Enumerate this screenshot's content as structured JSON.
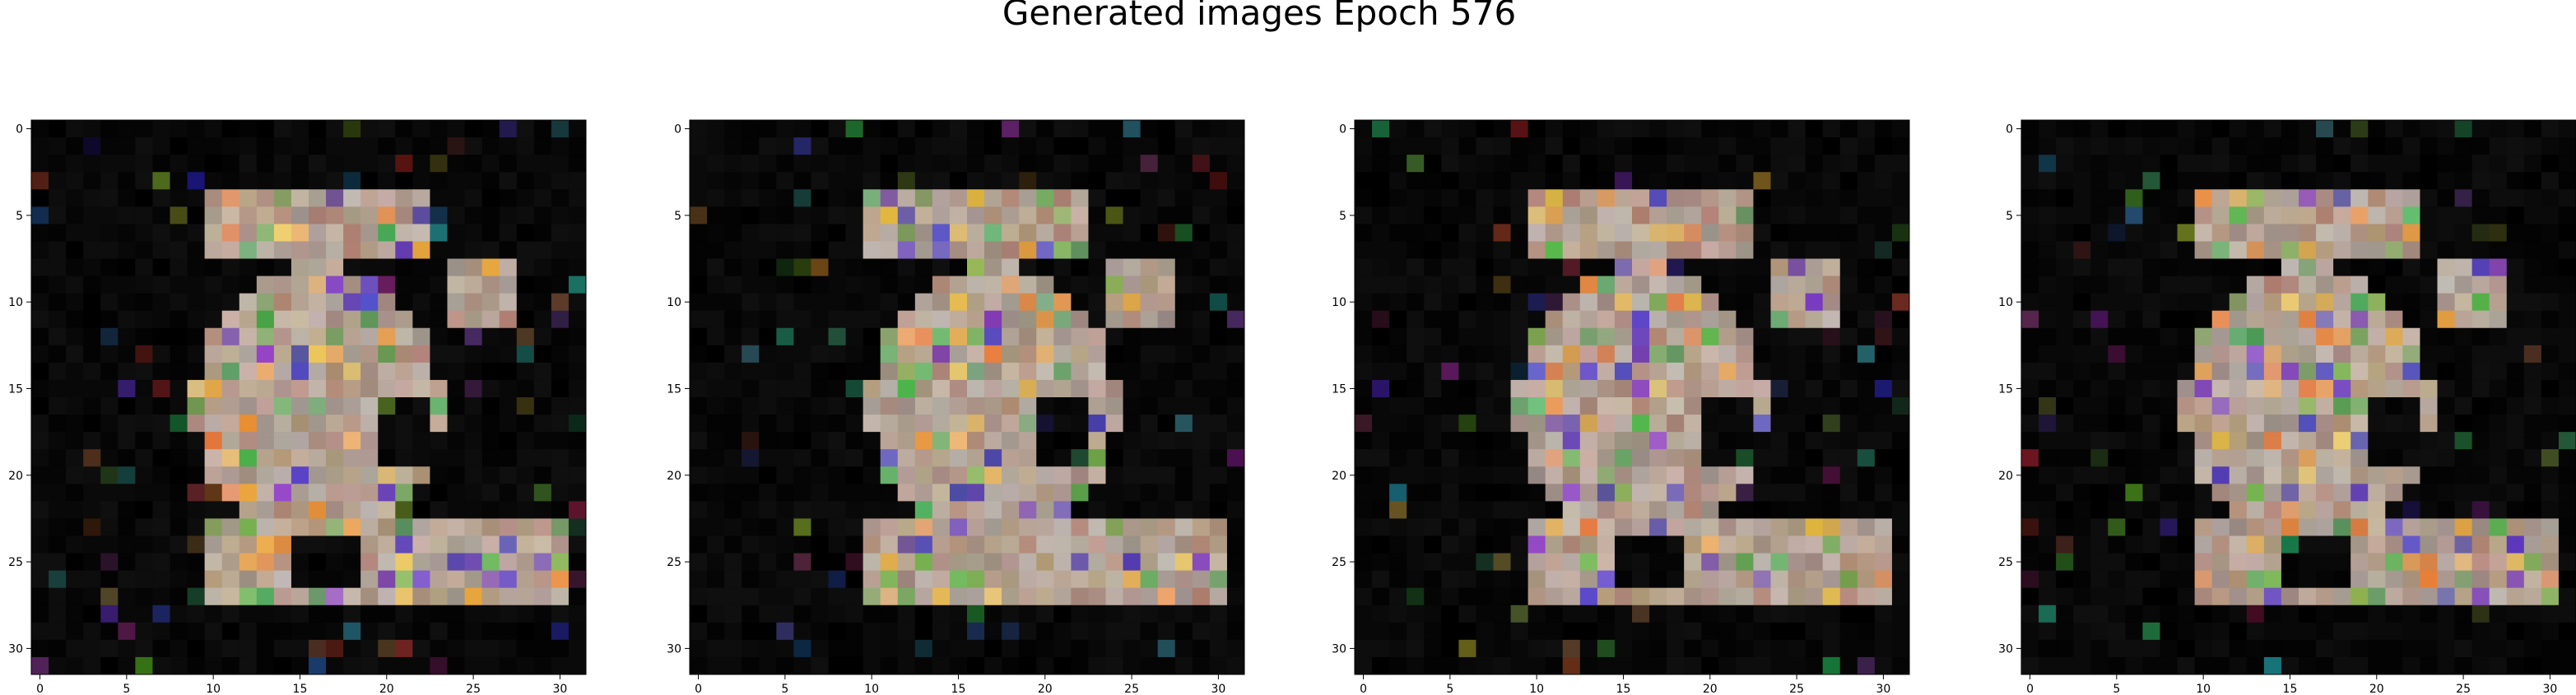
{
  "figure": {
    "title": "Generated images Epoch 576",
    "background": "#ffffff"
  },
  "panels": [
    {
      "name": "generated-image-1",
      "seed": 11
    },
    {
      "name": "generated-image-2",
      "seed": 29
    },
    {
      "name": "generated-image-3",
      "seed": 47
    },
    {
      "name": "generated-image-4",
      "seed": 53
    }
  ],
  "image": {
    "grid_size": 32,
    "background_color": "#000000"
  },
  "axes": {
    "x_ticks": [
      0,
      5,
      10,
      15,
      20,
      25,
      30
    ],
    "y_ticks": [
      0,
      5,
      10,
      15,
      20,
      25,
      30
    ],
    "x_tick_labels": [
      "0",
      "5",
      "10",
      "15",
      "20",
      "25",
      "30"
    ],
    "y_tick_labels": [
      "0",
      "5",
      "10",
      "15",
      "20",
      "25",
      "30"
    ]
  }
}
